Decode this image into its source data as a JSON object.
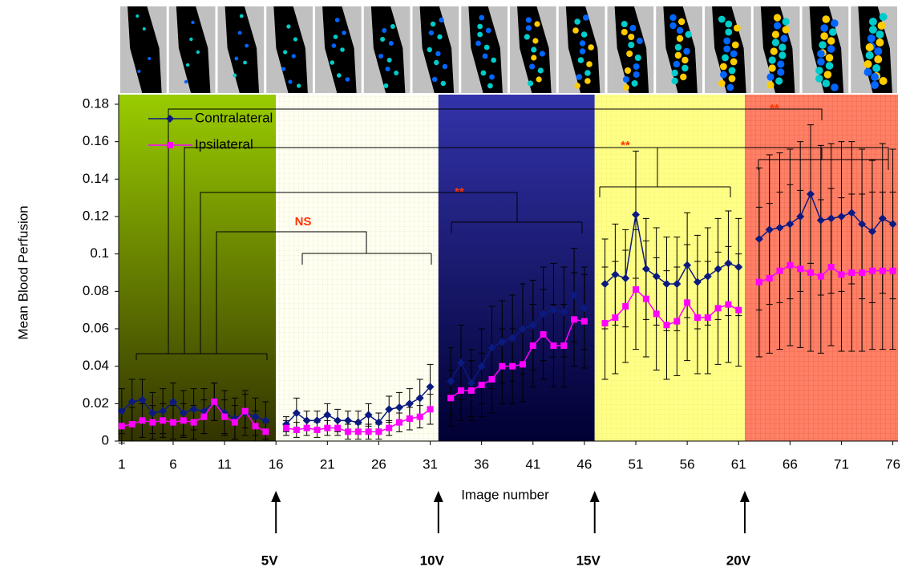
{
  "chart_data": {
    "type": "line",
    "x_label": "Image number",
    "y_label": "Mean Blood Perfusion",
    "x": [
      1,
      2,
      3,
      4,
      5,
      6,
      7,
      8,
      9,
      10,
      11,
      12,
      13,
      14,
      15,
      16,
      17,
      18,
      19,
      20,
      21,
      22,
      23,
      24,
      25,
      26,
      27,
      28,
      29,
      30,
      31,
      32,
      33,
      34,
      35,
      36,
      37,
      38,
      39,
      40,
      41,
      42,
      43,
      44,
      45,
      46,
      47,
      48,
      49,
      50,
      51,
      52,
      53,
      54,
      55,
      56,
      57,
      58,
      59,
      60,
      61,
      62,
      63,
      64,
      65,
      66,
      67,
      68,
      69,
      70,
      71,
      72,
      73,
      74,
      75,
      76
    ],
    "series": [
      {
        "name": "Contralateral",
        "color": "#0a1a80",
        "marker": "diamond",
        "values": [
          0.016,
          0.021,
          0.022,
          0.015,
          0.016,
          0.021,
          0.015,
          0.017,
          0.016,
          0.021,
          0.015,
          0.012,
          0.015,
          0.013,
          0.011,
          null,
          0.009,
          0.015,
          0.011,
          0.011,
          0.014,
          0.011,
          0.011,
          0.01,
          0.014,
          0.01,
          0.017,
          0.018,
          0.02,
          0.023,
          0.029,
          null,
          0.032,
          0.042,
          0.031,
          0.04,
          0.05,
          0.053,
          0.055,
          0.06,
          0.062,
          0.068,
          0.07,
          0.069,
          0.078,
          0.071,
          null,
          0.084,
          0.089,
          0.087,
          0.121,
          0.092,
          0.088,
          0.084,
          0.084,
          0.094,
          0.085,
          0.088,
          0.092,
          0.095,
          0.093,
          null,
          0.108,
          0.113,
          0.114,
          0.116,
          0.12,
          0.132,
          0.118,
          0.119,
          0.12,
          0.122,
          0.116,
          0.112,
          0.119,
          0.116
        ],
        "errors": [
          0.012,
          0.012,
          0.011,
          0.011,
          0.012,
          0.01,
          0.012,
          0.011,
          0.012,
          0.01,
          0.012,
          0.011,
          0.012,
          0.01,
          0.01,
          null,
          0.004,
          0.008,
          0.005,
          0.005,
          0.006,
          0.006,
          0.005,
          0.006,
          0.006,
          0.005,
          0.007,
          0.008,
          0.008,
          0.01,
          0.012,
          null,
          0.018,
          0.02,
          0.018,
          0.02,
          0.022,
          0.022,
          0.023,
          0.024,
          0.024,
          0.025,
          0.025,
          0.024,
          0.025,
          0.022,
          null,
          0.024,
          0.027,
          0.026,
          0.034,
          0.027,
          0.026,
          0.025,
          0.025,
          0.028,
          0.025,
          0.026,
          0.027,
          0.028,
          0.026,
          null,
          0.038,
          0.04,
          0.04,
          0.04,
          0.04,
          0.037,
          0.04,
          0.04,
          0.04,
          0.038,
          0.04,
          0.038,
          0.04,
          0.04
        ]
      },
      {
        "name": "Ipsilateral",
        "color": "#ff00ff",
        "marker": "square",
        "values": [
          0.008,
          0.009,
          0.011,
          0.01,
          0.011,
          0.01,
          0.011,
          0.01,
          0.013,
          0.021,
          0.013,
          0.01,
          0.016,
          0.008,
          0.005,
          null,
          0.007,
          0.006,
          0.007,
          0.006,
          0.007,
          0.007,
          0.005,
          0.005,
          0.005,
          0.005,
          0.007,
          0.01,
          0.012,
          0.013,
          0.017,
          null,
          0.023,
          0.027,
          0.027,
          0.03,
          0.033,
          0.04,
          0.04,
          0.041,
          0.051,
          0.057,
          0.051,
          0.051,
          0.065,
          0.064,
          null,
          0.063,
          0.066,
          0.072,
          0.081,
          0.076,
          0.068,
          0.062,
          0.064,
          0.074,
          0.066,
          0.066,
          0.071,
          0.073,
          0.07,
          null,
          0.085,
          0.087,
          0.091,
          0.094,
          0.092,
          0.09,
          0.088,
          0.093,
          0.089,
          0.09,
          0.09,
          0.091,
          0.091,
          0.091
        ],
        "errors": [
          0.009,
          0.009,
          0.009,
          0.009,
          0.009,
          0.009,
          0.009,
          0.009,
          0.009,
          0.01,
          0.009,
          0.009,
          0.009,
          0.008,
          0.005,
          null,
          0.004,
          0.004,
          0.004,
          0.004,
          0.004,
          0.004,
          0.004,
          0.004,
          0.004,
          0.004,
          0.004,
          0.005,
          0.006,
          0.006,
          0.008,
          null,
          0.015,
          0.016,
          0.016,
          0.017,
          0.018,
          0.02,
          0.02,
          0.02,
          0.022,
          0.024,
          0.022,
          0.022,
          0.025,
          0.025,
          null,
          0.03,
          0.03,
          0.03,
          0.032,
          0.031,
          0.03,
          0.029,
          0.029,
          0.031,
          0.03,
          0.03,
          0.03,
          0.031,
          0.03,
          null,
          0.04,
          0.04,
          0.042,
          0.043,
          0.042,
          0.042,
          0.041,
          0.042,
          0.041,
          0.042,
          0.042,
          0.042,
          0.042,
          0.042
        ]
      }
    ],
    "xlim": [
      0.7,
      76.5
    ],
    "xticks": [
      1,
      6,
      11,
      16,
      21,
      26,
      31,
      36,
      41,
      46,
      51,
      56,
      61,
      66,
      71,
      76
    ],
    "ylim": [
      0,
      0.18
    ],
    "yticks": [
      0,
      0.02,
      0.04,
      0.06,
      0.08,
      0.1,
      0.12,
      0.14,
      0.16,
      0.18
    ],
    "annotations": [
      "NS",
      "**",
      "**",
      "**"
    ],
    "stimuli": [
      {
        "x": 16,
        "label": "5V"
      },
      {
        "x": 31.8,
        "label": "10V"
      },
      {
        "x": 47,
        "label": "15V"
      },
      {
        "x": 61.6,
        "label": "20V"
      }
    ]
  }
}
